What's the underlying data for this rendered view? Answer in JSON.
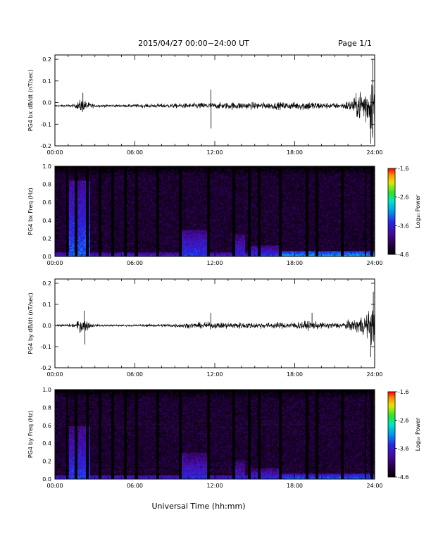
{
  "header": {
    "title": "2015/04/27  00:00−24:00 UT",
    "page": "Page 1/1"
  },
  "xlabel": "Universal Time (hh:mm)",
  "chart_data": [
    {
      "type": "line",
      "ylabel": "PG4 bx dB/dt (nT/sec)",
      "xlim": [
        0,
        24
      ],
      "ylim": [
        -0.2,
        0.22
      ],
      "xticks": [
        "00:00",
        "06:00",
        "12:00",
        "18:00",
        "24:00"
      ],
      "yticks": [
        "0.2",
        "0.1",
        "0.0",
        "-0.1",
        "-0.2"
      ],
      "series": [
        {
          "baseline": -0.015,
          "envelope_x": [
            0,
            1.5,
            2.0,
            2.5,
            3.0,
            5.0,
            6.0,
            10.0,
            11.5,
            12.0,
            13.5,
            16.0,
            18.0,
            19.0,
            20.0,
            21.5,
            22.5,
            23.0,
            23.5,
            23.9,
            24.0
          ],
          "envelope_amp": [
            0.004,
            0.008,
            0.035,
            0.018,
            0.007,
            0.006,
            0.008,
            0.012,
            0.017,
            0.014,
            0.018,
            0.016,
            0.018,
            0.024,
            0.016,
            0.012,
            0.04,
            0.09,
            0.1,
            0.17,
            0.09
          ],
          "spikes": [
            {
              "x": 2.1,
              "y": 0.045
            },
            {
              "x": 11.7,
              "y": 0.06
            },
            {
              "x": 11.72,
              "y": -0.12
            },
            {
              "x": 23.7,
              "y": -0.19
            },
            {
              "x": 23.85,
              "y": 0.2
            }
          ]
        }
      ]
    },
    {
      "type": "heatmap",
      "ylabel": "PG4 bx Freq (Hz)",
      "xlim": [
        0,
        24
      ],
      "ylim": [
        0,
        1.0
      ],
      "xticks": [
        "00:00",
        "06:00",
        "12:00",
        "18:00",
        "24:00"
      ],
      "yticks": [
        "1.0",
        "0.8",
        "0.6",
        "0.4",
        "0.2",
        "0.0"
      ],
      "colorbar": {
        "label": "Log₁₀ Power",
        "min": -4.6,
        "max": -1.6,
        "ticks": [
          "-1.6",
          "-2.6",
          "-3.6",
          "-4.6"
        ]
      },
      "gaps_hours": [
        0.9,
        1.6,
        2.4,
        3.4,
        4.3,
        5.3,
        6.1,
        7.7,
        9.4,
        11.5,
        13.4,
        14.6,
        15.3,
        16.9,
        18.9,
        19.7,
        21.6,
        23.3,
        23.8
      ],
      "bands": [
        {
          "x0": 1.1,
          "x1": 2.6,
          "fmax": 0.85,
          "level": -3.6
        },
        {
          "x0": 9.3,
          "x1": 11.6,
          "fmax": 0.3,
          "level": -3.7
        },
        {
          "x0": 13.3,
          "x1": 14.3,
          "fmax": 0.25,
          "level": -3.8
        },
        {
          "x0": 14.5,
          "x1": 17.0,
          "fmax": 0.12,
          "level": -3.7
        },
        {
          "x0": 17.0,
          "x1": 24.0,
          "fmax": 0.07,
          "level": -3.3
        }
      ]
    },
    {
      "type": "line",
      "ylabel": "PG4 by dB/dt (nT/sec)",
      "xlim": [
        0,
        24
      ],
      "ylim": [
        -0.2,
        0.22
      ],
      "xticks": [
        "00:00",
        "06:00",
        "12:00",
        "18:00",
        "24:00"
      ],
      "yticks": [
        "0.2",
        "0.1",
        "0.0",
        "-0.1",
        "-0.2"
      ],
      "series": [
        {
          "baseline": 0.0,
          "envelope_x": [
            0,
            1.5,
            2.0,
            2.5,
            3.0,
            5.0,
            6.0,
            8.0,
            10.0,
            11.5,
            12.0,
            13.5,
            16.0,
            18.0,
            19.0,
            20.0,
            21.5,
            22.5,
            23.0,
            23.5,
            23.9,
            24.0
          ],
          "envelope_amp": [
            0.004,
            0.01,
            0.04,
            0.02,
            0.006,
            0.004,
            0.005,
            0.008,
            0.012,
            0.016,
            0.014,
            0.016,
            0.014,
            0.017,
            0.022,
            0.015,
            0.015,
            0.03,
            0.05,
            0.06,
            0.11,
            0.07
          ],
          "spikes": [
            {
              "x": 2.2,
              "y": 0.07
            },
            {
              "x": 2.25,
              "y": -0.09
            },
            {
              "x": 11.7,
              "y": 0.06
            },
            {
              "x": 19.3,
              "y": 0.06
            },
            {
              "x": 23.7,
              "y": -0.15
            },
            {
              "x": 23.9,
              "y": 0.16
            }
          ]
        }
      ]
    },
    {
      "type": "heatmap",
      "ylabel": "PG4 by Freq (Hz)",
      "xlim": [
        0,
        24
      ],
      "ylim": [
        0,
        1.0
      ],
      "xticks": [
        "00:00",
        "06:00",
        "12:00",
        "18:00",
        "24:00"
      ],
      "yticks": [
        "1.0",
        "0.8",
        "0.6",
        "0.4",
        "0.2",
        "0.0"
      ],
      "colorbar": {
        "label": "Log₁₀ Power",
        "min": -4.6,
        "max": -1.6,
        "ticks": [
          "-1.6",
          "-2.6",
          "-3.6",
          "-4.6"
        ]
      },
      "gaps_hours": [
        0.9,
        1.6,
        2.4,
        3.4,
        4.3,
        5.3,
        6.1,
        7.7,
        9.4,
        11.5,
        13.4,
        14.6,
        15.3,
        16.9,
        18.9,
        19.7,
        21.6,
        23.3,
        23.8
      ],
      "bands": [
        {
          "x0": 1.1,
          "x1": 2.6,
          "fmax": 0.6,
          "level": -3.7
        },
        {
          "x0": 9.3,
          "x1": 11.6,
          "fmax": 0.3,
          "level": -3.8
        },
        {
          "x0": 13.3,
          "x1": 14.3,
          "fmax": 0.22,
          "level": -3.9
        },
        {
          "x0": 14.5,
          "x1": 17.0,
          "fmax": 0.12,
          "level": -3.8
        },
        {
          "x0": 17.0,
          "x1": 24.0,
          "fmax": 0.06,
          "level": -3.5
        }
      ]
    }
  ]
}
